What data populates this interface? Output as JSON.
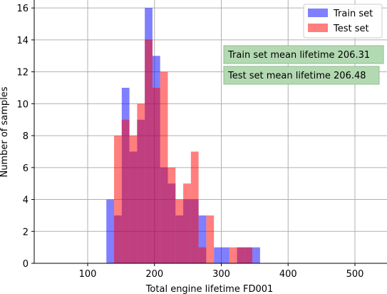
{
  "chart_data": {
    "type": "bar",
    "title": "",
    "xlabel": "Total engine lifetime FD001",
    "ylabel": "Number of samples",
    "xlim": [
      20,
      548
    ],
    "ylim": [
      0,
      16.5
    ],
    "x_ticks": [
      100,
      200,
      300,
      400,
      500
    ],
    "y_ticks": [
      0,
      2,
      4,
      6,
      8,
      10,
      12,
      14,
      16
    ],
    "grid": true,
    "legend_position": "top-right",
    "bin_width": 11.5,
    "bin_edges": [
      128,
      139.5,
      151,
      162.5,
      174,
      185.5,
      197,
      208.5,
      220,
      231.5,
      243,
      254.5,
      266,
      277.5,
      289,
      300.5,
      312,
      323.5,
      335,
      346.5,
      358
    ],
    "series": [
      {
        "name": "Train set",
        "color": "#0000ff",
        "alpha": 0.5,
        "counts": [
          4,
          3,
          11,
          7,
          9,
          16,
          13,
          6,
          5,
          3,
          4,
          4,
          3,
          0,
          1,
          1,
          0,
          1,
          1,
          1
        ]
      },
      {
        "name": "Test set",
        "color": "#ff0000",
        "alpha": 0.5,
        "counts": [
          0,
          8,
          9,
          8,
          10,
          14,
          11,
          12,
          6,
          4,
          5,
          7,
          1,
          3,
          0,
          0,
          1,
          1,
          1,
          0
        ]
      }
    ],
    "annotations": [
      {
        "text": "Train set mean lifetime 206.31"
      },
      {
        "text": "Test set mean lifetime 206.48"
      }
    ]
  }
}
